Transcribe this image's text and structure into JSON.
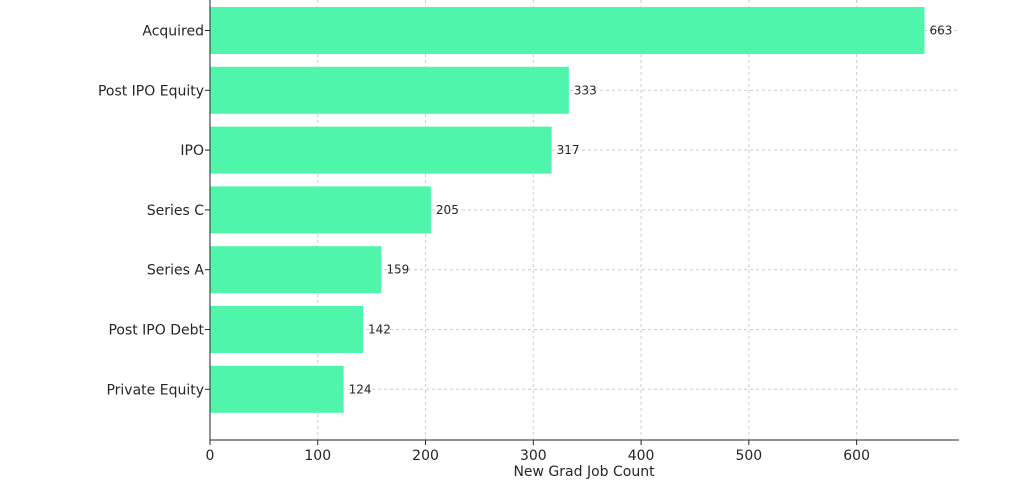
{
  "chart_data": {
    "type": "bar",
    "orientation": "horizontal",
    "categories": [
      "Acquired",
      "Post IPO Equity",
      "IPO",
      "Series C",
      "Series A",
      "Post IPO Debt",
      "Private Equity"
    ],
    "values": [
      663,
      333,
      317,
      205,
      159,
      142,
      124
    ],
    "data_labels": [
      "663",
      "333",
      "317",
      "205",
      "159",
      "142",
      "124"
    ],
    "xlabel": "New Grad Job Count",
    "ylabel": "",
    "xlim": [
      0,
      695
    ],
    "xticks": [
      0,
      100,
      200,
      300,
      400,
      500,
      600
    ],
    "xtick_labels": [
      "0",
      "100",
      "200",
      "300",
      "400",
      "500",
      "600"
    ],
    "grid": true,
    "bar_color": "#4ef5aa"
  }
}
